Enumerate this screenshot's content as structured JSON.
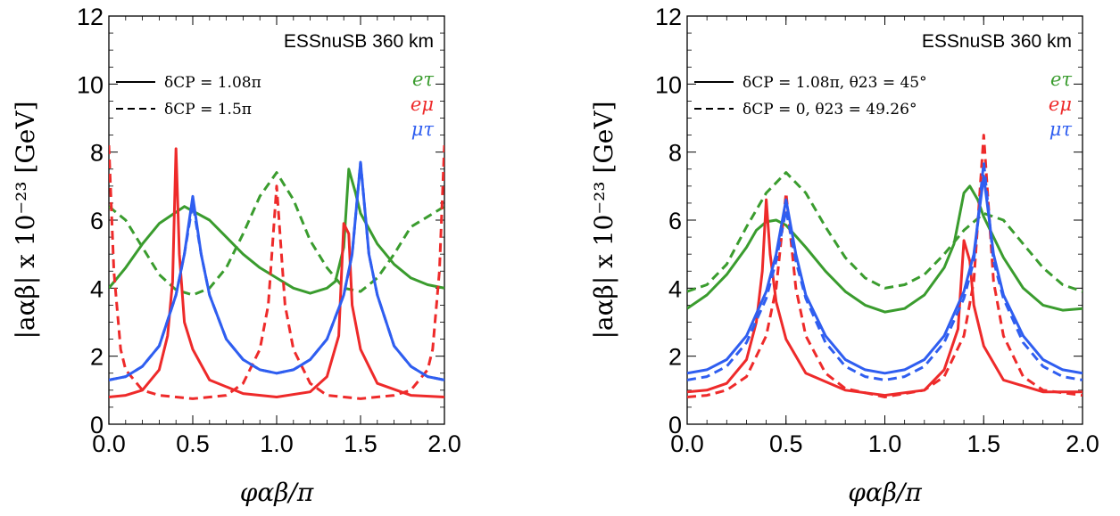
{
  "chart_data": [
    {
      "type": "line",
      "xlabel": "φαβ/π",
      "ylabel": "|aαβ| x 10⁻²³ [GeV]",
      "xlim": [
        0,
        2
      ],
      "ylim": [
        0,
        12
      ],
      "x_ticks": [
        "0.0",
        "0.5",
        "1.0",
        "1.5",
        "2.0"
      ],
      "y_ticks": [
        "0",
        "2",
        "4",
        "6",
        "8",
        "10",
        "12"
      ],
      "annotation_title": "ESSnuSB 360 km",
      "style_legend": [
        {
          "dash": "solid",
          "label": "δCP = 1.08π"
        },
        {
          "dash": "dashed",
          "label": "δCP = 1.5π"
        }
      ],
      "series_labels": [
        {
          "label": "eτ",
          "color": "#3a9c2e"
        },
        {
          "label": "eμ",
          "color": "#ee2a2a"
        },
        {
          "label": "μτ",
          "color": "#2f5ef0"
        }
      ],
      "series": [
        {
          "label": "eτ",
          "dash": "solid",
          "color": "#3a9c2e",
          "x": [
            0.0,
            0.1,
            0.2,
            0.3,
            0.45,
            0.6,
            0.7,
            0.8,
            0.9,
            1.0,
            1.1,
            1.2,
            1.3,
            1.35,
            1.4,
            1.43,
            1.47,
            1.5,
            1.6,
            1.7,
            1.8,
            1.9,
            2.0
          ],
          "y": [
            4.0,
            4.6,
            5.3,
            5.9,
            6.4,
            6.0,
            5.5,
            5.0,
            4.6,
            4.3,
            4.0,
            3.85,
            4.0,
            4.2,
            5.2,
            7.5,
            6.8,
            6.2,
            5.3,
            4.7,
            4.3,
            4.1,
            4.0
          ]
        },
        {
          "label": "eτ",
          "dash": "dashed",
          "color": "#3a9c2e",
          "x": [
            0.0,
            0.1,
            0.2,
            0.3,
            0.4,
            0.5,
            0.6,
            0.7,
            0.8,
            0.9,
            1.0,
            1.1,
            1.2,
            1.3,
            1.4,
            1.5,
            1.6,
            1.7,
            1.8,
            1.9,
            2.0
          ],
          "y": [
            6.4,
            6.0,
            5.2,
            4.4,
            3.95,
            3.8,
            4.0,
            4.6,
            5.6,
            6.7,
            7.4,
            6.6,
            5.4,
            4.6,
            4.0,
            3.9,
            4.3,
            5.0,
            5.8,
            6.1,
            6.4
          ]
        },
        {
          "label": "eμ",
          "dash": "solid",
          "color": "#ee2a2a",
          "x": [
            0.0,
            0.1,
            0.2,
            0.3,
            0.35,
            0.38,
            0.4,
            0.42,
            0.45,
            0.5,
            0.6,
            0.8,
            1.0,
            1.2,
            1.3,
            1.37,
            1.4,
            1.43,
            1.45,
            1.5,
            1.6,
            1.8,
            2.0
          ],
          "y": [
            0.8,
            0.85,
            1.0,
            1.6,
            2.6,
            4.2,
            8.1,
            5.0,
            3.0,
            2.2,
            1.3,
            0.9,
            0.8,
            0.95,
            1.4,
            2.6,
            5.9,
            5.6,
            3.5,
            2.2,
            1.2,
            0.85,
            0.8
          ]
        },
        {
          "label": "eμ",
          "dash": "dashed",
          "color": "#ee2a2a",
          "x": [
            0.0,
            0.03,
            0.07,
            0.1,
            0.2,
            0.3,
            0.5,
            0.7,
            0.8,
            0.9,
            0.95,
            1.0,
            1.05,
            1.1,
            1.2,
            1.3,
            1.5,
            1.7,
            1.8,
            1.9,
            1.93,
            1.97,
            2.0
          ],
          "y": [
            8.2,
            4.5,
            2.2,
            1.6,
            1.0,
            0.85,
            0.75,
            0.85,
            1.2,
            2.2,
            3.5,
            7.0,
            3.5,
            2.2,
            1.2,
            0.85,
            0.75,
            0.85,
            1.0,
            1.6,
            2.2,
            4.5,
            8.2
          ]
        },
        {
          "label": "μτ",
          "dash": "solid",
          "color": "#2f5ef0",
          "x": [
            0.0,
            0.1,
            0.2,
            0.3,
            0.4,
            0.45,
            0.5,
            0.55,
            0.6,
            0.7,
            0.8,
            0.9,
            1.0,
            1.1,
            1.2,
            1.3,
            1.4,
            1.45,
            1.5,
            1.55,
            1.6,
            1.7,
            1.8,
            1.9,
            2.0
          ],
          "y": [
            1.3,
            1.4,
            1.7,
            2.3,
            3.8,
            5.0,
            6.7,
            5.0,
            3.8,
            2.5,
            1.9,
            1.6,
            1.5,
            1.6,
            1.9,
            2.5,
            3.8,
            5.0,
            7.7,
            5.0,
            3.8,
            2.3,
            1.7,
            1.4,
            1.3
          ]
        },
        {
          "label": "μτ",
          "dash": "dashed",
          "color": "#2f5ef0",
          "x": [
            0.0,
            0.1,
            0.2,
            0.3,
            0.4,
            0.45,
            0.5,
            0.55,
            0.6,
            0.7,
            0.8,
            0.9,
            1.0,
            1.1,
            1.2,
            1.3,
            1.4,
            1.45,
            1.5,
            1.55,
            1.6,
            1.7,
            1.8,
            1.9,
            2.0
          ],
          "y": [
            1.3,
            1.4,
            1.7,
            2.3,
            3.8,
            5.0,
            6.5,
            5.0,
            3.8,
            2.5,
            1.9,
            1.6,
            1.5,
            1.6,
            1.9,
            2.5,
            3.8,
            5.0,
            7.7,
            5.0,
            3.8,
            2.3,
            1.7,
            1.4,
            1.3
          ]
        }
      ]
    },
    {
      "type": "line",
      "xlabel": "φαβ/π",
      "ylabel": "|aαβ| x 10⁻²³ [GeV]",
      "xlim": [
        0,
        2
      ],
      "ylim": [
        0,
        12
      ],
      "x_ticks": [
        "0.0",
        "0.5",
        "1.0",
        "1.5",
        "2.0"
      ],
      "y_ticks": [
        "0",
        "2",
        "4",
        "6",
        "8",
        "10",
        "12"
      ],
      "annotation_title": "ESSnuSB 360 km",
      "style_legend": [
        {
          "dash": "solid",
          "label": "δCP = 1.08π, θ23 = 45°"
        },
        {
          "dash": "dashed",
          "label": "δCP = 0, θ23 = 49.26°"
        }
      ],
      "series_labels": [
        {
          "label": "eτ",
          "color": "#3a9c2e"
        },
        {
          "label": "eμ",
          "color": "#ee2a2a"
        },
        {
          "label": "μτ",
          "color": "#2f5ef0"
        }
      ],
      "series": [
        {
          "label": "eτ",
          "dash": "solid",
          "color": "#3a9c2e",
          "x": [
            0.0,
            0.1,
            0.2,
            0.3,
            0.35,
            0.4,
            0.45,
            0.5,
            0.6,
            0.7,
            0.8,
            0.9,
            1.0,
            1.1,
            1.2,
            1.3,
            1.35,
            1.4,
            1.43,
            1.47,
            1.5,
            1.6,
            1.7,
            1.8,
            1.9,
            2.0
          ],
          "y": [
            3.4,
            3.8,
            4.4,
            5.2,
            5.7,
            5.95,
            6.0,
            5.85,
            5.2,
            4.5,
            3.9,
            3.5,
            3.3,
            3.4,
            3.8,
            4.6,
            5.3,
            6.8,
            7.0,
            6.6,
            6.1,
            4.9,
            4.0,
            3.5,
            3.35,
            3.4
          ]
        },
        {
          "label": "eτ",
          "dash": "dashed",
          "color": "#3a9c2e",
          "x": [
            0.0,
            0.1,
            0.2,
            0.3,
            0.4,
            0.5,
            0.6,
            0.7,
            0.8,
            0.9,
            1.0,
            1.1,
            1.2,
            1.3,
            1.4,
            1.5,
            1.6,
            1.7,
            1.8,
            1.9,
            2.0
          ],
          "y": [
            3.9,
            4.1,
            4.7,
            5.8,
            6.8,
            7.4,
            6.8,
            5.8,
            4.9,
            4.3,
            4.0,
            4.1,
            4.4,
            5.0,
            5.7,
            6.2,
            6.0,
            5.3,
            4.6,
            4.1,
            3.9
          ]
        },
        {
          "label": "eμ",
          "dash": "solid",
          "color": "#ee2a2a",
          "x": [
            0.0,
            0.1,
            0.2,
            0.3,
            0.35,
            0.38,
            0.4,
            0.42,
            0.45,
            0.5,
            0.6,
            0.8,
            1.0,
            1.2,
            1.3,
            1.37,
            1.4,
            1.43,
            1.45,
            1.5,
            1.6,
            1.8,
            2.0
          ],
          "y": [
            0.95,
            1.0,
            1.2,
            1.9,
            3.0,
            4.5,
            6.6,
            5.0,
            3.6,
            2.5,
            1.5,
            1.0,
            0.85,
            1.0,
            1.6,
            2.8,
            5.4,
            4.8,
            3.5,
            2.3,
            1.3,
            0.95,
            0.95
          ]
        },
        {
          "label": "eμ",
          "dash": "dashed",
          "color": "#ee2a2a",
          "x": [
            0.0,
            0.1,
            0.2,
            0.3,
            0.4,
            0.45,
            0.5,
            0.55,
            0.6,
            0.7,
            0.8,
            1.0,
            1.2,
            1.3,
            1.4,
            1.45,
            1.5,
            1.55,
            1.6,
            1.7,
            1.8,
            2.0
          ],
          "y": [
            0.8,
            0.85,
            1.0,
            1.4,
            2.6,
            4.0,
            6.8,
            4.0,
            2.6,
            1.5,
            1.05,
            0.8,
            1.0,
            1.4,
            2.6,
            4.2,
            8.5,
            4.2,
            2.6,
            1.4,
            1.0,
            0.85
          ]
        },
        {
          "label": "μτ",
          "dash": "solid",
          "color": "#2f5ef0",
          "x": [
            0.0,
            0.1,
            0.2,
            0.3,
            0.4,
            0.45,
            0.5,
            0.55,
            0.6,
            0.7,
            0.8,
            0.9,
            1.0,
            1.1,
            1.2,
            1.3,
            1.4,
            1.45,
            1.5,
            1.55,
            1.6,
            1.7,
            1.8,
            1.9,
            2.0
          ],
          "y": [
            1.5,
            1.6,
            1.9,
            2.6,
            3.9,
            5.0,
            6.6,
            5.0,
            3.8,
            2.6,
            1.9,
            1.6,
            1.5,
            1.6,
            1.9,
            2.6,
            3.9,
            5.0,
            7.3,
            5.0,
            3.8,
            2.6,
            1.9,
            1.6,
            1.5
          ]
        },
        {
          "label": "μτ",
          "dash": "dashed",
          "color": "#2f5ef0",
          "x": [
            0.0,
            0.1,
            0.2,
            0.3,
            0.4,
            0.45,
            0.5,
            0.55,
            0.6,
            0.7,
            0.8,
            0.9,
            1.0,
            1.1,
            1.2,
            1.3,
            1.4,
            1.45,
            1.5,
            1.55,
            1.6,
            1.7,
            1.8,
            1.9,
            2.0
          ],
          "y": [
            1.3,
            1.4,
            1.7,
            2.4,
            3.7,
            4.8,
            6.3,
            4.8,
            3.7,
            2.4,
            1.7,
            1.4,
            1.3,
            1.4,
            1.7,
            2.4,
            3.7,
            4.8,
            7.7,
            4.8,
            3.7,
            2.4,
            1.7,
            1.4,
            1.3
          ]
        }
      ]
    }
  ]
}
